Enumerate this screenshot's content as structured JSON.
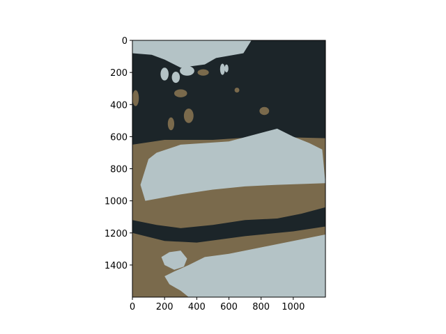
{
  "chart_data": {
    "type": "image",
    "title": "",
    "xlabel": "",
    "ylabel": "",
    "xlim": [
      0,
      1200
    ],
    "ylim": [
      1600,
      0
    ],
    "y_inverted": true,
    "x_ticks": [
      0,
      200,
      400,
      600,
      800,
      1000
    ],
    "y_ticks": [
      0,
      200,
      400,
      600,
      800,
      1000,
      1200,
      1400
    ],
    "grid": false,
    "legend": "none",
    "palette": {
      "dark": "#1c2529",
      "light": "#b4c3c6",
      "brown": "#7a6a4c"
    },
    "regions": [
      {
        "name": "dark-background",
        "color": "dark",
        "points": [
          [
            0,
            0
          ],
          [
            1200,
            0
          ],
          [
            1200,
            605
          ],
          [
            1000,
            600
          ],
          [
            700,
            620
          ],
          [
            300,
            650
          ],
          [
            150,
            680
          ],
          [
            0,
            700
          ]
        ]
      },
      {
        "name": "light-top-shape",
        "color": "light",
        "points": [
          [
            0,
            0
          ],
          [
            740,
            0
          ],
          [
            690,
            80
          ],
          [
            520,
            110
          ],
          [
            450,
            150
          ],
          [
            300,
            170
          ],
          [
            200,
            120
          ],
          [
            120,
            90
          ],
          [
            0,
            80
          ]
        ]
      },
      {
        "name": "brown-table-band",
        "color": "brown",
        "points": [
          [
            0,
            650
          ],
          [
            200,
            620
          ],
          [
            500,
            620
          ],
          [
            800,
            600
          ],
          [
            1200,
            610
          ],
          [
            1200,
            1600
          ],
          [
            0,
            1600
          ]
        ]
      },
      {
        "name": "light-cloth",
        "color": "light",
        "points": [
          [
            100,
            740
          ],
          [
            150,
            700
          ],
          [
            300,
            650
          ],
          [
            600,
            630
          ],
          [
            900,
            550
          ],
          [
            1000,
            600
          ],
          [
            1100,
            640
          ],
          [
            1180,
            680
          ],
          [
            1200,
            890
          ],
          [
            900,
            900
          ],
          [
            700,
            910
          ],
          [
            500,
            930
          ],
          [
            300,
            960
          ],
          [
            80,
            1000
          ],
          [
            50,
            900
          ]
        ]
      },
      {
        "name": "dark-stripe",
        "color": "dark",
        "points": [
          [
            0,
            1120
          ],
          [
            150,
            1150
          ],
          [
            300,
            1170
          ],
          [
            500,
            1150
          ],
          [
            700,
            1120
          ],
          [
            900,
            1110
          ],
          [
            1050,
            1080
          ],
          [
            1200,
            1040
          ],
          [
            1200,
            1160
          ],
          [
            1000,
            1190
          ],
          [
            700,
            1220
          ],
          [
            400,
            1260
          ],
          [
            200,
            1250
          ],
          [
            0,
            1200
          ]
        ]
      },
      {
        "name": "light-floor",
        "color": "light",
        "points": [
          [
            1200,
            1210
          ],
          [
            1000,
            1250
          ],
          [
            800,
            1290
          ],
          [
            600,
            1330
          ],
          [
            450,
            1350
          ],
          [
            350,
            1400
          ],
          [
            260,
            1440
          ],
          [
            200,
            1470
          ],
          [
            230,
            1520
          ],
          [
            300,
            1560
          ],
          [
            350,
            1600
          ],
          [
            1200,
            1600
          ]
        ]
      },
      {
        "name": "light-blob",
        "color": "light",
        "points": [
          [
            180,
            1350
          ],
          [
            230,
            1320
          ],
          [
            300,
            1310
          ],
          [
            340,
            1360
          ],
          [
            320,
            1410
          ],
          [
            260,
            1430
          ],
          [
            200,
            1400
          ]
        ]
      }
    ],
    "highlights": [
      {
        "cx": 340,
        "cy": 190,
        "rx": 45,
        "ry": 30,
        "color": "light"
      },
      {
        "cx": 440,
        "cy": 200,
        "rx": 35,
        "ry": 20,
        "color": "brown"
      },
      {
        "cx": 200,
        "cy": 210,
        "rx": 25,
        "ry": 40,
        "color": "light"
      },
      {
        "cx": 560,
        "cy": 180,
        "rx": 15,
        "ry": 35,
        "color": "light"
      },
      {
        "cx": 585,
        "cy": 175,
        "rx": 12,
        "ry": 25,
        "color": "light"
      },
      {
        "cx": 270,
        "cy": 230,
        "rx": 25,
        "ry": 35,
        "color": "light"
      },
      {
        "cx": 300,
        "cy": 330,
        "rx": 40,
        "ry": 25,
        "color": "brown"
      },
      {
        "cx": 650,
        "cy": 310,
        "rx": 15,
        "ry": 15,
        "color": "brown"
      },
      {
        "cx": 820,
        "cy": 440,
        "rx": 30,
        "ry": 25,
        "color": "brown"
      },
      {
        "cx": 350,
        "cy": 470,
        "rx": 30,
        "ry": 45,
        "color": "brown"
      },
      {
        "cx": 240,
        "cy": 520,
        "rx": 20,
        "ry": 40,
        "color": "brown"
      },
      {
        "cx": 20,
        "cy": 360,
        "rx": 20,
        "ry": 50,
        "color": "brown"
      }
    ]
  }
}
